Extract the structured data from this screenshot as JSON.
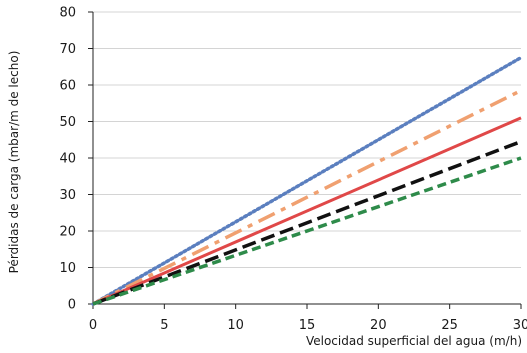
{
  "chart_data": {
    "type": "line",
    "title": "",
    "xlabel": "Velocidad superficial del agua (m/h)",
    "ylabel": "Pérdidas de carga  (mbar/m de lecho)",
    "xlim": [
      0,
      30
    ],
    "ylim": [
      0,
      80
    ],
    "xticks": [
      0,
      5,
      10,
      15,
      20,
      25,
      30
    ],
    "yticks": [
      0,
      10,
      20,
      30,
      40,
      50,
      60,
      70,
      80
    ],
    "grid": "horizontal",
    "legend": "none",
    "series": [
      {
        "style": "dotted",
        "color": "#5b7fbf",
        "x": [
          0,
          30
        ],
        "y": [
          0,
          67.5
        ]
      },
      {
        "style": "dash-dot",
        "color": "#f0a070",
        "x": [
          0,
          30
        ],
        "y": [
          0,
          58.5
        ]
      },
      {
        "style": "solid",
        "color": "#e04848",
        "x": [
          0,
          30
        ],
        "y": [
          0,
          51
        ]
      },
      {
        "style": "long-dash",
        "color": "#111111",
        "x": [
          0,
          30
        ],
        "y": [
          0,
          44.5
        ]
      },
      {
        "style": "short-dash",
        "color": "#2e8b4a",
        "x": [
          0,
          30
        ],
        "y": [
          0,
          40
        ]
      }
    ]
  }
}
